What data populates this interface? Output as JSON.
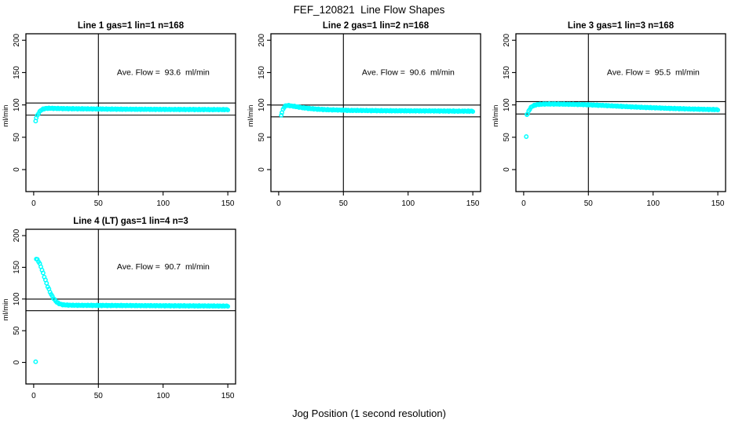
{
  "chart_data": {
    "type": "scatter",
    "title": "FEF_120821  Line Flow Shapes",
    "xlabel": "Jog Position (1 second resolution)",
    "ylabel": "ml/min",
    "marker": {
      "shape": "open-circle",
      "color": "#00FFFF",
      "radius_px": 2.2
    },
    "line_color": "#000000",
    "background_color": "#FFFFFF",
    "axes": {
      "x_ticks": [
        0,
        50,
        100,
        150
      ],
      "y_ticks": [
        0,
        50,
        100,
        150,
        200
      ],
      "x_range": [
        -6,
        156
      ],
      "y_range": [
        -34,
        210
      ],
      "grid": false
    },
    "panels": [
      {
        "title": "Line 1 gas=1 lin=1 n=168",
        "gas": 1,
        "lin": 1,
        "n": 168,
        "annotation": "Ave. Flow =  93.6  ml/min",
        "avg_flow": 93.6,
        "upper_ref_line": 103.0,
        "lower_ref_line": 84.2,
        "vline_x": 50,
        "ylab": "ml/min",
        "isolated_points": [
          [
            1.5,
            75
          ]
        ],
        "curve": [
          [
            2,
            80
          ],
          [
            3,
            84
          ],
          [
            4,
            88
          ],
          [
            5,
            90.5
          ],
          [
            6,
            92.3
          ],
          [
            7,
            93.4
          ],
          [
            8,
            94.1
          ],
          [
            10,
            94.7
          ],
          [
            13,
            94.8
          ],
          [
            17,
            94.5
          ],
          [
            25,
            94.2
          ],
          [
            40,
            93.9
          ],
          [
            50,
            93.7
          ],
          [
            60,
            93.5
          ],
          [
            75,
            93.3
          ],
          [
            90,
            93.2
          ],
          [
            105,
            93.0
          ],
          [
            120,
            92.9
          ],
          [
            135,
            92.8
          ],
          [
            150,
            92.7
          ]
        ]
      },
      {
        "title": "Line 2 gas=1 lin=2 n=168",
        "gas": 1,
        "lin": 2,
        "n": 168,
        "annotation": "Ave. Flow =  90.6  ml/min",
        "avg_flow": 90.6,
        "upper_ref_line": 99.7,
        "lower_ref_line": 81.5,
        "vline_x": 50,
        "ylab": "ml/min",
        "isolated_points": [
          [
            2,
            84
          ]
        ],
        "curve": [
          [
            2.5,
            88
          ],
          [
            3,
            91
          ],
          [
            4,
            96
          ],
          [
            5,
            98.2
          ],
          [
            6,
            98.9
          ],
          [
            7,
            99.1
          ],
          [
            9,
            98.6
          ],
          [
            12,
            97.8
          ],
          [
            15,
            96.8
          ],
          [
            18,
            95.8
          ],
          [
            22,
            94.8
          ],
          [
            26,
            94.0
          ],
          [
            30,
            93.4
          ],
          [
            35,
            92.8
          ],
          [
            40,
            92.4
          ],
          [
            45,
            92.1
          ],
          [
            50,
            91.9
          ],
          [
            55,
            91.4
          ],
          [
            60,
            91.5
          ],
          [
            70,
            91.2
          ],
          [
            80,
            91.0
          ],
          [
            90,
            90.9
          ],
          [
            100,
            90.8
          ],
          [
            110,
            90.7
          ],
          [
            120,
            90.6
          ],
          [
            135,
            90.4
          ],
          [
            150,
            90.3
          ]
        ]
      },
      {
        "title": "Line 3 gas=1 lin=3 n=168",
        "gas": 1,
        "lin": 3,
        "n": 168,
        "annotation": "Ave. Flow =  95.5  ml/min",
        "avg_flow": 95.5,
        "upper_ref_line": 105.1,
        "lower_ref_line": 86.0,
        "vline_x": 50,
        "ylab": "ml/min",
        "isolated_points": [
          [
            2,
            51
          ],
          [
            2.5,
            85
          ]
        ],
        "curve": [
          [
            3,
            86
          ],
          [
            4,
            91
          ],
          [
            5,
            94.5
          ],
          [
            6,
            96.8
          ],
          [
            7,
            98.2
          ],
          [
            8,
            99.2
          ],
          [
            10,
            100.3
          ],
          [
            12,
            100.8
          ],
          [
            15,
            101.2
          ],
          [
            20,
            101.4
          ],
          [
            30,
            101.2
          ],
          [
            40,
            100.8
          ],
          [
            50,
            100.2
          ],
          [
            60,
            99.3
          ],
          [
            70,
            98.3
          ],
          [
            80,
            97.3
          ],
          [
            90,
            96.4
          ],
          [
            100,
            95.6
          ],
          [
            110,
            94.8
          ],
          [
            120,
            94.2
          ],
          [
            130,
            93.6
          ],
          [
            140,
            93.1
          ],
          [
            150,
            92.7
          ]
        ]
      },
      {
        "title": "Line 4 (LT) gas=1 lin=4 n=3",
        "gas": 1,
        "lin": 4,
        "n": 3,
        "annotation": "Ave. Flow =  90.7  ml/min",
        "avg_flow": 90.7,
        "upper_ref_line": 99.8,
        "lower_ref_line": 81.6,
        "vline_x": 50,
        "ylab": "ml/min",
        "isolated_points": [
          [
            1.5,
            1
          ]
        ],
        "curve": [
          [
            2,
            163
          ],
          [
            3,
            162
          ],
          [
            4,
            158.5
          ],
          [
            5,
            154
          ],
          [
            6,
            148.5
          ],
          [
            7,
            142.5
          ],
          [
            8,
            136.5
          ],
          [
            9,
            130.5
          ],
          [
            10,
            124.5
          ],
          [
            11,
            119
          ],
          [
            12,
            114
          ],
          [
            13,
            109.5
          ],
          [
            14,
            105.5
          ],
          [
            15,
            102.2
          ],
          [
            16,
            99.3
          ],
          [
            17,
            96.8
          ],
          [
            18,
            94.9
          ],
          [
            19,
            93.4
          ],
          [
            20,
            92.3
          ],
          [
            22,
            91.2
          ],
          [
            24,
            90.7
          ],
          [
            27,
            90.3
          ],
          [
            30,
            90.2
          ],
          [
            40,
            90.0
          ],
          [
            50,
            89.9
          ],
          [
            70,
            89.7
          ],
          [
            90,
            89.5
          ],
          [
            110,
            89.3
          ],
          [
            130,
            89.1
          ],
          [
            150,
            88.9
          ]
        ]
      }
    ]
  }
}
